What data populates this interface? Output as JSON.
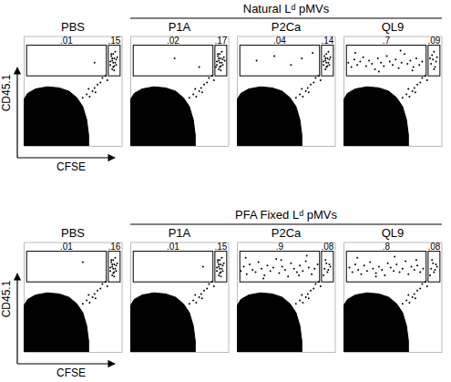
{
  "row_titles": [
    "Natural Lᵈ pMVs",
    "PFA Fixed Lᵈ pMVs"
  ],
  "chart_data": [
    {
      "type": "scatter",
      "title": "PBS",
      "xlabel": "CFSE",
      "ylabel": "CD45.1",
      "color": "#000000",
      "xlim": [
        0,
        100
      ],
      "ylim": [
        0,
        100
      ],
      "tick_labels": false,
      "population": {
        "x": [
          0,
          0,
          4,
          12,
          24,
          36,
          46,
          54,
          60,
          64,
          66,
          66
        ],
        "y": [
          0,
          42,
          48,
          52,
          54,
          53,
          50,
          44,
          36,
          24,
          10,
          0
        ]
      },
      "x": [
        60,
        64,
        67,
        70,
        72,
        75,
        78,
        80,
        83,
        85,
        73,
        66,
        88,
        90,
        91,
        92,
        93,
        89,
        91,
        94,
        90,
        92,
        95,
        88,
        93,
        91,
        90,
        94,
        92,
        89,
        72
      ],
      "y": [
        44,
        47,
        45,
        50,
        53,
        56,
        58,
        62,
        64,
        60,
        49,
        52,
        74,
        78,
        72,
        80,
        76,
        82,
        84,
        79,
        70,
        73,
        81,
        77,
        86,
        76,
        80,
        74,
        69,
        84,
        76
      ],
      "gates": [
        {
          "x": [
            3,
            84
          ],
          "y": [
            64,
            92
          ],
          "value": 0.01,
          "label": ".01"
        },
        {
          "x": [
            86,
            98
          ],
          "y": [
            64,
            92
          ],
          "value": 0.15,
          "label": ".15"
        }
      ]
    },
    {
      "type": "scatter",
      "title": "P1A",
      "color": "#000000",
      "xlim": [
        0,
        100
      ],
      "ylim": [
        0,
        100
      ],
      "tick_labels": false,
      "population": {
        "x": [
          0,
          0,
          4,
          12,
          24,
          36,
          46,
          54,
          60,
          64,
          66,
          66
        ],
        "y": [
          0,
          42,
          48,
          52,
          54,
          53,
          50,
          44,
          36,
          24,
          10,
          0
        ]
      },
      "x": [
        60,
        64,
        67,
        70,
        72,
        75,
        78,
        80,
        83,
        85,
        73,
        66,
        88,
        90,
        91,
        92,
        93,
        89,
        91,
        94,
        90,
        92,
        95,
        88,
        93,
        91,
        90,
        94,
        92,
        89,
        96,
        87,
        45,
        70
      ],
      "y": [
        44,
        47,
        45,
        50,
        53,
        56,
        58,
        62,
        64,
        60,
        49,
        52,
        74,
        78,
        72,
        80,
        76,
        82,
        84,
        79,
        70,
        73,
        81,
        77,
        86,
        76,
        80,
        74,
        69,
        84,
        78,
        72,
        80,
        72
      ],
      "gates": [
        {
          "x": [
            3,
            84
          ],
          "y": [
            64,
            92
          ],
          "value": 0.02,
          "label": ".02"
        },
        {
          "x": [
            86,
            98
          ],
          "y": [
            64,
            92
          ],
          "value": 0.17,
          "label": ".17"
        }
      ]
    },
    {
      "type": "scatter",
      "title": "P2Ca",
      "color": "#000000",
      "xlim": [
        0,
        100
      ],
      "ylim": [
        0,
        100
      ],
      "tick_labels": false,
      "population": {
        "x": [
          0,
          0,
          4,
          12,
          24,
          36,
          46,
          54,
          60,
          64,
          66,
          66
        ],
        "y": [
          0,
          42,
          48,
          52,
          54,
          53,
          50,
          44,
          36,
          24,
          10,
          0
        ]
      },
      "x": [
        60,
        64,
        67,
        70,
        72,
        75,
        78,
        80,
        83,
        85,
        73,
        66,
        88,
        90,
        91,
        92,
        93,
        89,
        91,
        94,
        90,
        92,
        95,
        88,
        93,
        91,
        90,
        94,
        20,
        38,
        55,
        66,
        77
      ],
      "y": [
        44,
        47,
        45,
        50,
        53,
        56,
        58,
        62,
        64,
        60,
        49,
        52,
        74,
        78,
        72,
        80,
        76,
        82,
        84,
        79,
        70,
        73,
        81,
        77,
        86,
        76,
        80,
        74,
        78,
        82,
        74,
        80,
        85
      ],
      "gates": [
        {
          "x": [
            3,
            84
          ],
          "y": [
            64,
            92
          ],
          "value": 0.04,
          "label": ".04"
        },
        {
          "x": [
            86,
            98
          ],
          "y": [
            64,
            92
          ],
          "value": 0.14,
          "label": ".14"
        }
      ]
    },
    {
      "type": "scatter",
      "title": "QL9",
      "color": "#000000",
      "xlim": [
        0,
        100
      ],
      "ylim": [
        0,
        100
      ],
      "tick_labels": false,
      "population": {
        "x": [
          0,
          0,
          4,
          12,
          24,
          36,
          46,
          54,
          60,
          64,
          66,
          66
        ],
        "y": [
          0,
          42,
          48,
          52,
          54,
          53,
          50,
          44,
          36,
          24,
          10,
          0
        ]
      },
      "x": [
        60,
        64,
        67,
        70,
        72,
        75,
        78,
        80,
        83,
        85,
        73,
        66,
        89,
        91,
        93,
        90,
        94,
        92,
        88,
        92,
        95,
        5,
        8,
        11,
        14,
        17,
        20,
        23,
        26,
        29,
        32,
        35,
        38,
        41,
        44,
        47,
        50,
        53,
        56,
        59,
        62,
        65,
        68,
        71,
        74,
        77,
        80,
        12,
        36,
        58,
        70
      ],
      "y": [
        44,
        47,
        45,
        50,
        53,
        56,
        58,
        62,
        64,
        60,
        49,
        52,
        75,
        79,
        72,
        83,
        77,
        70,
        80,
        86,
        81,
        76,
        72,
        79,
        74,
        77,
        81,
        73,
        78,
        75,
        70,
        80,
        76,
        73,
        82,
        77,
        74,
        79,
        71,
        76,
        84,
        75,
        78,
        72,
        80,
        74,
        77,
        85,
        68,
        87,
        69
      ],
      "gates": [
        {
          "x": [
            3,
            84
          ],
          "y": [
            64,
            92
          ],
          "value": 0.7,
          "label": ".7"
        },
        {
          "x": [
            86,
            98
          ],
          "y": [
            64,
            92
          ],
          "value": 0.09,
          "label": ".09"
        }
      ]
    },
    {
      "type": "scatter",
      "title": "PBS",
      "xlabel": "CFSE",
      "ylabel": "CD45.1",
      "color": "#000000",
      "xlim": [
        0,
        100
      ],
      "ylim": [
        0,
        100
      ],
      "tick_labels": false,
      "population": {
        "x": [
          0,
          0,
          4,
          12,
          24,
          36,
          46,
          54,
          60,
          64,
          66,
          66
        ],
        "y": [
          0,
          42,
          48,
          52,
          54,
          53,
          50,
          44,
          36,
          24,
          10,
          0
        ]
      },
      "x": [
        60,
        64,
        67,
        70,
        72,
        75,
        78,
        80,
        83,
        85,
        73,
        66,
        88,
        90,
        91,
        92,
        93,
        89,
        91,
        94,
        90,
        92,
        95,
        88,
        93,
        91,
        90,
        94,
        92,
        89,
        60
      ],
      "y": [
        44,
        47,
        45,
        50,
        53,
        56,
        58,
        62,
        64,
        60,
        49,
        52,
        74,
        78,
        72,
        80,
        76,
        82,
        84,
        79,
        70,
        73,
        81,
        77,
        86,
        76,
        80,
        74,
        69,
        84,
        82
      ],
      "gates": [
        {
          "x": [
            3,
            84
          ],
          "y": [
            64,
            92
          ],
          "value": 0.01,
          "label": ".01"
        },
        {
          "x": [
            86,
            98
          ],
          "y": [
            64,
            92
          ],
          "value": 0.16,
          "label": ".16"
        }
      ]
    },
    {
      "type": "scatter",
      "title": "P1A",
      "color": "#000000",
      "xlim": [
        0,
        100
      ],
      "ylim": [
        0,
        100
      ],
      "tick_labels": false,
      "population": {
        "x": [
          0,
          0,
          4,
          12,
          24,
          36,
          46,
          54,
          60,
          64,
          66,
          66
        ],
        "y": [
          0,
          42,
          48,
          52,
          54,
          53,
          50,
          44,
          36,
          24,
          10,
          0
        ]
      },
      "x": [
        60,
        64,
        67,
        70,
        72,
        75,
        78,
        80,
        83,
        85,
        73,
        66,
        88,
        90,
        91,
        92,
        93,
        89,
        91,
        94,
        90,
        92,
        95,
        88,
        93,
        91,
        90,
        94,
        92,
        89,
        74
      ],
      "y": [
        44,
        47,
        45,
        50,
        53,
        56,
        58,
        62,
        64,
        60,
        49,
        52,
        74,
        78,
        72,
        80,
        76,
        82,
        84,
        79,
        70,
        73,
        81,
        77,
        86,
        76,
        80,
        74,
        69,
        84,
        78
      ],
      "gates": [
        {
          "x": [
            3,
            84
          ],
          "y": [
            64,
            92
          ],
          "value": 0.01,
          "label": ".01"
        },
        {
          "x": [
            86,
            98
          ],
          "y": [
            64,
            92
          ],
          "value": 0.15,
          "label": ".15"
        }
      ]
    },
    {
      "type": "scatter",
      "title": "P2Ca",
      "color": "#000000",
      "xlim": [
        0,
        100
      ],
      "ylim": [
        0,
        100
      ],
      "tick_labels": false,
      "population": {
        "x": [
          0,
          0,
          4,
          12,
          24,
          36,
          46,
          54,
          60,
          64,
          66,
          66
        ],
        "y": [
          0,
          42,
          48,
          52,
          54,
          53,
          50,
          44,
          36,
          24,
          10,
          0
        ]
      },
      "x": [
        60,
        64,
        67,
        70,
        72,
        75,
        78,
        80,
        83,
        85,
        73,
        66,
        89,
        92,
        94,
        90,
        93,
        91,
        95,
        88,
        4,
        7,
        10,
        13,
        16,
        19,
        22,
        25,
        28,
        31,
        34,
        37,
        40,
        43,
        46,
        49,
        52,
        55,
        58,
        61,
        64,
        67,
        70,
        73,
        76,
        79,
        82,
        9,
        27,
        45,
        63,
        71
      ],
      "y": [
        44,
        47,
        45,
        50,
        53,
        56,
        58,
        62,
        64,
        60,
        49,
        52,
        76,
        73,
        80,
        84,
        75,
        81,
        78,
        70,
        74,
        78,
        71,
        80,
        75,
        73,
        82,
        76,
        70,
        79,
        74,
        77,
        85,
        72,
        78,
        75,
        69,
        81,
        76,
        73,
        79,
        74,
        83,
        77,
        71,
        76,
        80,
        86,
        67,
        84,
        70,
        88
      ],
      "gates": [
        {
          "x": [
            3,
            84
          ],
          "y": [
            64,
            92
          ],
          "value": 0.9,
          "label": ".9"
        },
        {
          "x": [
            86,
            98
          ],
          "y": [
            64,
            92
          ],
          "value": 0.08,
          "label": ".08"
        }
      ]
    },
    {
      "type": "scatter",
      "title": "QL9",
      "color": "#000000",
      "xlim": [
        0,
        100
      ],
      "ylim": [
        0,
        100
      ],
      "tick_labels": false,
      "population": {
        "x": [
          0,
          0,
          4,
          12,
          24,
          36,
          46,
          54,
          60,
          64,
          66,
          66
        ],
        "y": [
          0,
          42,
          48,
          52,
          54,
          53,
          50,
          44,
          36,
          24,
          10,
          0
        ]
      },
      "x": [
        60,
        64,
        67,
        70,
        72,
        75,
        78,
        80,
        83,
        85,
        73,
        66,
        89,
        92,
        94,
        90,
        93,
        91,
        95,
        88,
        6,
        9,
        12,
        15,
        18,
        21,
        24,
        27,
        30,
        33,
        36,
        39,
        42,
        45,
        48,
        51,
        54,
        57,
        60,
        63,
        66,
        69,
        72,
        75,
        78,
        81,
        14,
        33,
        52,
        74
      ],
      "y": [
        44,
        47,
        45,
        50,
        53,
        56,
        58,
        62,
        64,
        60,
        49,
        52,
        76,
        73,
        80,
        84,
        75,
        81,
        78,
        70,
        77,
        73,
        80,
        75,
        71,
        79,
        74,
        82,
        76,
        72,
        78,
        75,
        70,
        81,
        77,
        74,
        80,
        73,
        76,
        83,
        71,
        78,
        75,
        79,
        73,
        76,
        86,
        69,
        87,
        84
      ],
      "gates": [
        {
          "x": [
            3,
            84
          ],
          "y": [
            64,
            92
          ],
          "value": 0.8,
          "label": ".8"
        },
        {
          "x": [
            86,
            98
          ],
          "y": [
            64,
            92
          ],
          "value": 0.08,
          "label": ".08"
        }
      ]
    }
  ]
}
